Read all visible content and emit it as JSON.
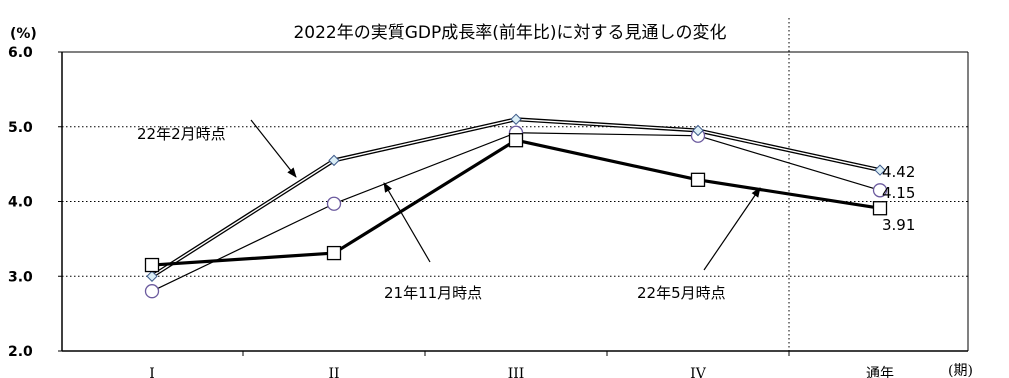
{
  "chart_data": {
    "type": "line",
    "title": "2022年の実質GDP成長率(前年比)に対する見通しの変化",
    "ylabel": "(%)",
    "xlabel": "(期)",
    "categories": [
      "I",
      "II",
      "III",
      "IV",
      "通年"
    ],
    "ylim": [
      2.0,
      6.0
    ],
    "yticks": [
      "2.0",
      "3.0",
      "4.0",
      "5.0",
      "6.0"
    ],
    "grid": "horizontal dotted",
    "legend": "none",
    "series": [
      {
        "name": "22年2月時点",
        "marker": "diamond",
        "line": "double",
        "color": "#000000",
        "marker_fill": "#dbeef6",
        "values": [
          3.0,
          4.55,
          5.1,
          4.95,
          4.42
        ]
      },
      {
        "name": "21年11月時点",
        "marker": "circle",
        "line": "thin",
        "color": "#000000",
        "marker_fill": "#ffffff",
        "marker_stroke": "#6b5a9e",
        "values": [
          2.8,
          3.97,
          4.92,
          4.88,
          4.15
        ]
      },
      {
        "name": "22年5月時点",
        "marker": "square",
        "line": "thick",
        "color": "#000000",
        "marker_fill": "#ffffff",
        "values": [
          3.15,
          3.31,
          4.82,
          4.29,
          3.91
        ]
      }
    ],
    "value_labels": [
      "4.42",
      "4.15",
      "3.91"
    ]
  }
}
